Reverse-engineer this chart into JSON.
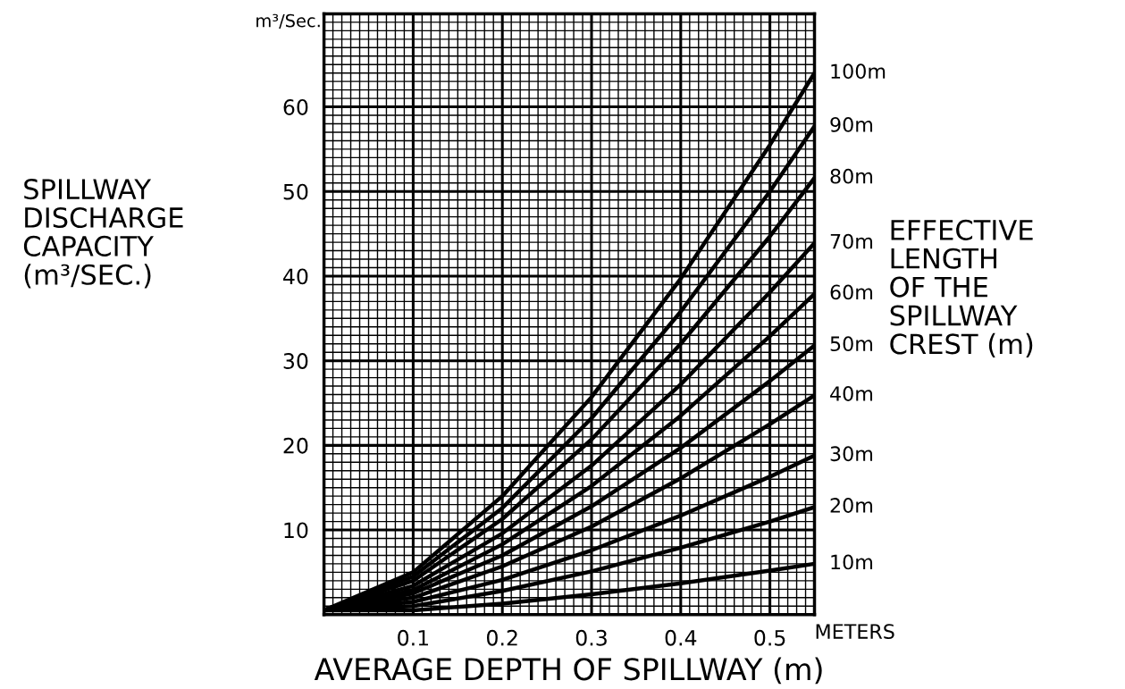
{
  "chart_data": {
    "type": "line",
    "xlabel": "AVERAGE DEPTH OF SPILLWAY (m)",
    "ylabel": "SPILLWAY\nDISCHARGE\nCAPACITY\n(m³/SEC.)",
    "y2label": "EFFECTIVE\nLENGTH\nOF THE\nSPILLWAY\nCREST (m)",
    "annotations": [
      "m³/Sec.",
      "METERS"
    ],
    "x": [
      0,
      0.1,
      0.2,
      0.3,
      0.4,
      0.5,
      0.55
    ],
    "xlim": [
      0,
      0.55
    ],
    "xticks": [
      0.1,
      0.2,
      0.3,
      0.4,
      0.5
    ],
    "ylim": [
      0,
      71
    ],
    "yticks": [
      10,
      20,
      30,
      40,
      50,
      60
    ],
    "grid": true,
    "marker": "none",
    "line_style": "solid",
    "series": [
      {
        "name": "100m",
        "color": "#000000",
        "values": [
          0.5,
          5.0,
          14.0,
          25.7,
          39.7,
          55.5,
          64
        ]
      },
      {
        "name": "90m",
        "color": "#000000",
        "values": [
          0.5,
          4.5,
          12.6,
          23.2,
          35.8,
          50.0,
          57.7
        ]
      },
      {
        "name": "80m",
        "color": "#000000",
        "values": [
          0.5,
          4.0,
          11.3,
          20.7,
          32.0,
          44.7,
          51.6
        ]
      },
      {
        "name": "70m",
        "color": "#000000",
        "values": [
          0.5,
          3.4,
          9.6,
          17.6,
          27.2,
          38.1,
          43.9
        ]
      },
      {
        "name": "60m",
        "color": "#000000",
        "values": [
          0.5,
          2.9,
          8.3,
          15.2,
          23.5,
          32.9,
          37.9
        ]
      },
      {
        "name": "50m",
        "color": "#000000",
        "values": [
          0.5,
          2.5,
          7.0,
          12.8,
          19.7,
          27.6,
          31.8
        ]
      },
      {
        "name": "40m",
        "color": "#000000",
        "values": [
          0.5,
          2.0,
          5.7,
          10.4,
          16.1,
          22.5,
          25.9
        ]
      },
      {
        "name": "30m",
        "color": "#000000",
        "values": [
          0.5,
          1.5,
          4.1,
          7.6,
          11.7,
          16.3,
          18.8
        ]
      },
      {
        "name": "20m",
        "color": "#000000",
        "values": [
          0.5,
          1.0,
          2.8,
          5.1,
          7.9,
          11.0,
          12.7
        ]
      },
      {
        "name": "10m",
        "color": "#000000",
        "values": [
          0.5,
          0.5,
          1.3,
          2.4,
          3.7,
          5.2,
          6.0
        ]
      }
    ]
  }
}
